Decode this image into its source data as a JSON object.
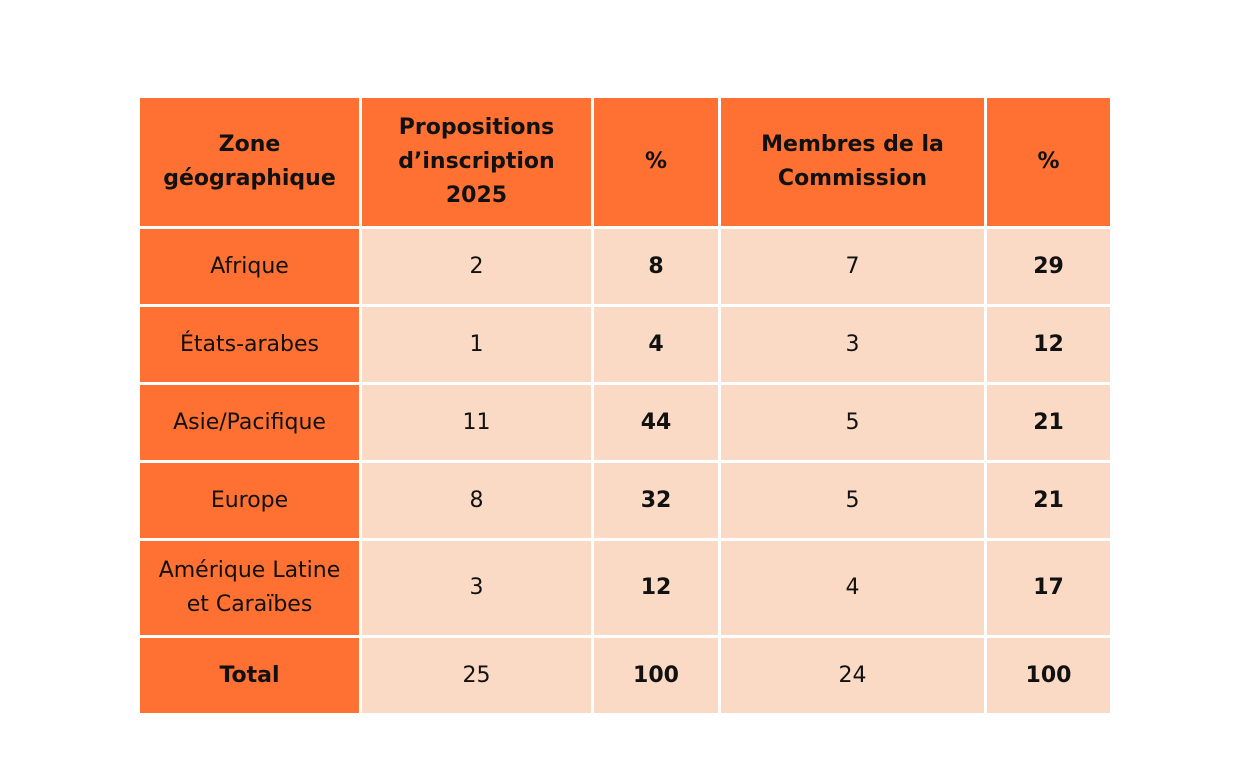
{
  "table": {
    "headers": [
      "Zone géographique",
      "Propositions d’inscription 2025",
      "%",
      "Membres de la Commission",
      "%"
    ],
    "rows": [
      {
        "zone": "Afrique",
        "propositions": "2",
        "prop_pct": "8",
        "membres": "7",
        "membres_pct": "29"
      },
      {
        "zone": "États-arabes",
        "propositions": "1",
        "prop_pct": "4",
        "membres": "3",
        "membres_pct": "12"
      },
      {
        "zone": "Asie/Pacifique",
        "propositions": "11",
        "prop_pct": "44",
        "membres": "5",
        "membres_pct": "21"
      },
      {
        "zone": "Europe",
        "propositions": "8",
        "prop_pct": "32",
        "membres": "5",
        "membres_pct": "21"
      },
      {
        "zone": "Amérique Latine et Caraïbes",
        "propositions": "3",
        "prop_pct": "12",
        "membres": "4",
        "membres_pct": "17"
      },
      {
        "zone": "Total",
        "propositions": "25",
        "prop_pct": "100",
        "membres": "24",
        "membres_pct": "100"
      }
    ],
    "colors": {
      "header_bg": "#ff7133",
      "cell_bg": "#fadac4"
    }
  },
  "chart_data": {
    "type": "table",
    "columns": [
      "Zone géographique",
      "Propositions d’inscription 2025",
      "%",
      "Membres de la Commission",
      "%"
    ],
    "rows": [
      [
        "Afrique",
        2,
        8,
        7,
        29
      ],
      [
        "États-arabes",
        1,
        4,
        3,
        12
      ],
      [
        "Asie/Pacifique",
        11,
        44,
        5,
        21
      ],
      [
        "Europe",
        8,
        32,
        5,
        21
      ],
      [
        "Amérique Latine et Caraïbes",
        3,
        12,
        4,
        17
      ],
      [
        "Total",
        25,
        100,
        24,
        100
      ]
    ]
  }
}
